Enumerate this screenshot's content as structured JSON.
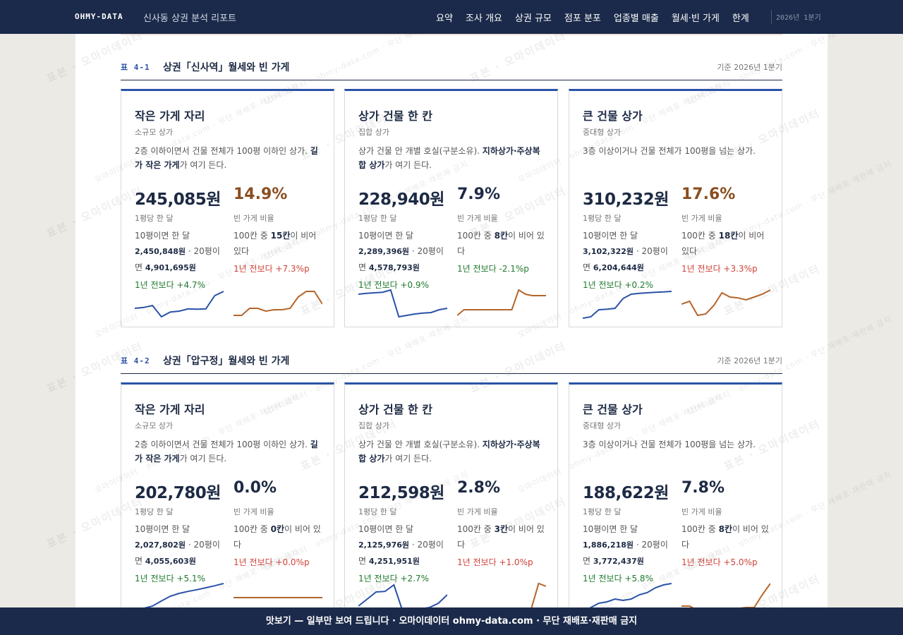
{
  "header": {
    "brand": "OHMY-DATA",
    "title": "신사동 상권 분석 리포트",
    "nav": [
      "요약",
      "조사 개요",
      "상권 규모",
      "점포 분포",
      "업종별 매출",
      "월세·빈 가게",
      "한계"
    ],
    "period": "2026년 1분기"
  },
  "sections": [
    {
      "num": "표 4-1",
      "title": "상권「신사역」월세와 빈 가게",
      "base": "기준 2026년 1분기",
      "cards": [
        {
          "name": "작은 가게 자리",
          "type": "소규모 상가",
          "desc_a": "2층 이하이면서 건물 전체가 100평 이하인 상가. ",
          "desc_b": "길가 작은 가게",
          "desc_c": "가 여기 든다.",
          "rent": "245,085원",
          "rent_label": "1평당 한 달",
          "calc_a": "10평이면 한 달",
          "calc_b": "2,450,848원",
          "calc_c": " · 20평이면 ",
          "calc_d": "4,901,695원",
          "rent_yoy": "1년 전보다 +4.7%",
          "vacancy": "14.9%",
          "vac_label": "빈 가게 비율",
          "vac_a": "100칸 중 ",
          "vac_b": "15칸",
          "vac_c": "이 비어 있다",
          "vac_yoy": "1년 전보다 +7.3%p",
          "rent_trend": [
            0.35,
            0.38,
            0.45,
            0.05,
            0.22,
            0.25,
            0.33,
            0.32,
            0.33,
            0.8,
            0.95
          ],
          "vac_trend": [
            0.1,
            0.1,
            0.35,
            0.35,
            0.25,
            0.3,
            0.3,
            0.35,
            0.75,
            0.95,
            0.95,
            0.5
          ]
        },
        {
          "name": "상가 건물 한 칸",
          "type": "집합 상가",
          "desc_a": "상가 건물 안 개별 호실(구분소유). ",
          "desc_b": "지하상가·주상복합 상가",
          "desc_c": "가 여기 든다.",
          "rent": "228,940원",
          "rent_label": "1평당 한 달",
          "calc_a": "10평이면 한 달",
          "calc_b": "2,289,396원",
          "calc_c": " · 20평이면 ",
          "calc_d": "4,578,793원",
          "rent_yoy": "1년 전보다 +0.9%",
          "vacancy": "7.9%",
          "vac_label": "빈 가게 비율",
          "vac_a": "100칸 중 ",
          "vac_b": "8칸",
          "vac_c": "이 비어 있다",
          "vac_yoy": "1년 전보다 -2.1%p",
          "rent_trend": [
            0.85,
            0.88,
            0.9,
            0.92,
            1.0,
            0.05,
            0.1,
            0.15,
            0.18,
            0.2,
            0.3,
            0.35
          ],
          "vac_trend": [
            0.1,
            0.3,
            0.3,
            0.3,
            0.3,
            0.3,
            0.3,
            0.3,
            0.3,
            1.0,
            0.85,
            0.8,
            0.8,
            0.8
          ]
        },
        {
          "name": "큰 건물 상가",
          "type": "중대형 상가",
          "desc_a": "3층 이상이거나 건물 전체가 100평을 넘는 상가.",
          "desc_b": "",
          "desc_c": "",
          "rent": "310,232원",
          "rent_label": "1평당 한 달",
          "calc_a": "10평이면 한 달",
          "calc_b": "3,102,322원",
          "calc_c": " · 20평이면 ",
          "calc_d": "6,204,644원",
          "rent_yoy": "1년 전보다 +0.2%",
          "vacancy": "17.6%",
          "vac_label": "빈 가게 비율",
          "vac_a": "100칸 중 ",
          "vac_b": "18칸",
          "vac_c": "이 비어 있다",
          "vac_yoy": "1년 전보다 +3.3%p",
          "rent_trend": [
            0.0,
            0.05,
            0.3,
            0.32,
            0.35,
            0.7,
            0.85,
            0.88,
            0.9,
            0.92,
            0.93,
            0.95
          ],
          "vac_trend": [
            0.5,
            0.6,
            0.1,
            0.15,
            0.45,
            0.9,
            0.75,
            0.72,
            0.65,
            0.75,
            0.85,
            1.0
          ]
        }
      ]
    },
    {
      "num": "표 4-2",
      "title": "상권「압구정」월세와 빈 가게",
      "base": "기준 2026년 1분기",
      "cards": [
        {
          "name": "작은 가게 자리",
          "type": "소규모 상가",
          "desc_a": "2층 이하이면서 건물 전체가 100평 이하인 상가. ",
          "desc_b": "길가 작은 가게",
          "desc_c": "가 여기 든다.",
          "rent": "202,780원",
          "rent_label": "1평당 한 달",
          "calc_a": "10평이면 한 달",
          "calc_b": "2,027,802원",
          "calc_c": " · 20평이면 ",
          "calc_d": "4,055,603원",
          "rent_yoy": "1년 전보다 +5.1%",
          "vacancy": "0.0%",
          "vac_label": "빈 가게 비율",
          "vac_a": "100칸 중 ",
          "vac_b": "0칸",
          "vac_c": "이 비어 있다",
          "vac_yoy": "1년 전보다 +0.0%p",
          "rent_trend": [
            0.0,
            0.12,
            0.2,
            0.38,
            0.55,
            0.65,
            0.72,
            0.78,
            0.85,
            0.92,
            1.0
          ],
          "vac_trend": [
            0.5,
            0.5,
            0.5,
            0.5,
            0.5,
            0.5,
            0.5,
            0.5,
            0.5,
            0.5
          ]
        },
        {
          "name": "상가 건물 한 칸",
          "type": "집합 상가",
          "desc_a": "상가 건물 안 개별 호실(구분소유). ",
          "desc_b": "지하상가·주상복합 상가",
          "desc_c": "가 여기 든다.",
          "rent": "212,598원",
          "rent_label": "1평당 한 달",
          "calc_a": "10평이면 한 달",
          "calc_b": "2,125,976원",
          "calc_c": " · 20평이면 ",
          "calc_d": "4,251,951원",
          "rent_yoy": "1년 전보다 +2.7%",
          "vacancy": "2.8%",
          "vac_label": "빈 가게 비율",
          "vac_a": "100칸 중 ",
          "vac_b": "3칸",
          "vac_c": "이 비어 있다",
          "vac_yoy": "1년 전보다 +1.0%p",
          "rent_trend": [
            0.2,
            0.45,
            0.7,
            0.72,
            0.95,
            0.0,
            0.05,
            0.1,
            0.15,
            0.3,
            0.6
          ],
          "vac_trend": [
            0.1,
            0.1,
            0.1,
            0.1,
            0.1,
            0.1,
            0.1,
            0.1,
            0.1,
            0.1,
            0.1,
            1.0,
            0.9
          ]
        },
        {
          "name": "큰 건물 상가",
          "type": "중대형 상가",
          "desc_a": "3층 이상이거나 건물 전체가 100평을 넘는 상가.",
          "desc_b": "",
          "desc_c": "",
          "rent": "188,622원",
          "rent_label": "1평당 한 달",
          "calc_a": "10평이면 한 달",
          "calc_b": "1,886,218원",
          "calc_c": " · 20평이면 ",
          "calc_d": "3,772,437원",
          "rent_yoy": "1년 전보다 +5.8%",
          "vacancy": "7.8%",
          "vac_label": "빈 가게 비율",
          "vac_a": "100칸 중 ",
          "vac_b": "8칸",
          "vac_c": "이 비어 있다",
          "vac_yoy": "1년 전보다 +5.0%p",
          "rent_trend": [
            0.0,
            0.15,
            0.3,
            0.35,
            0.45,
            0.4,
            0.45,
            0.6,
            0.68,
            0.85,
            0.95,
            1.0
          ],
          "vac_trend": [
            0.2,
            0.2,
            0.05,
            0.05,
            0.1,
            0.1,
            0.1,
            0.12,
            0.15,
            0.15,
            0.6,
            1.0
          ]
        }
      ]
    }
  ],
  "banner": "맛보기 — 일부만 보여 드립니다 · 오마이데이터 ohmy-data.com · 무단 재배포·재판매 금지",
  "watermark": [
    "표본 · 오마이데이터",
    "오마이데이터 · ohmy-data.com · 무단 재배포·재판매 금지"
  ],
  "colors": {
    "navy": "#1b2a4a",
    "accent": "#2a52a8",
    "up": "#d0433a",
    "down": "#1f7a2e",
    "vac_line": "#b5652a"
  }
}
